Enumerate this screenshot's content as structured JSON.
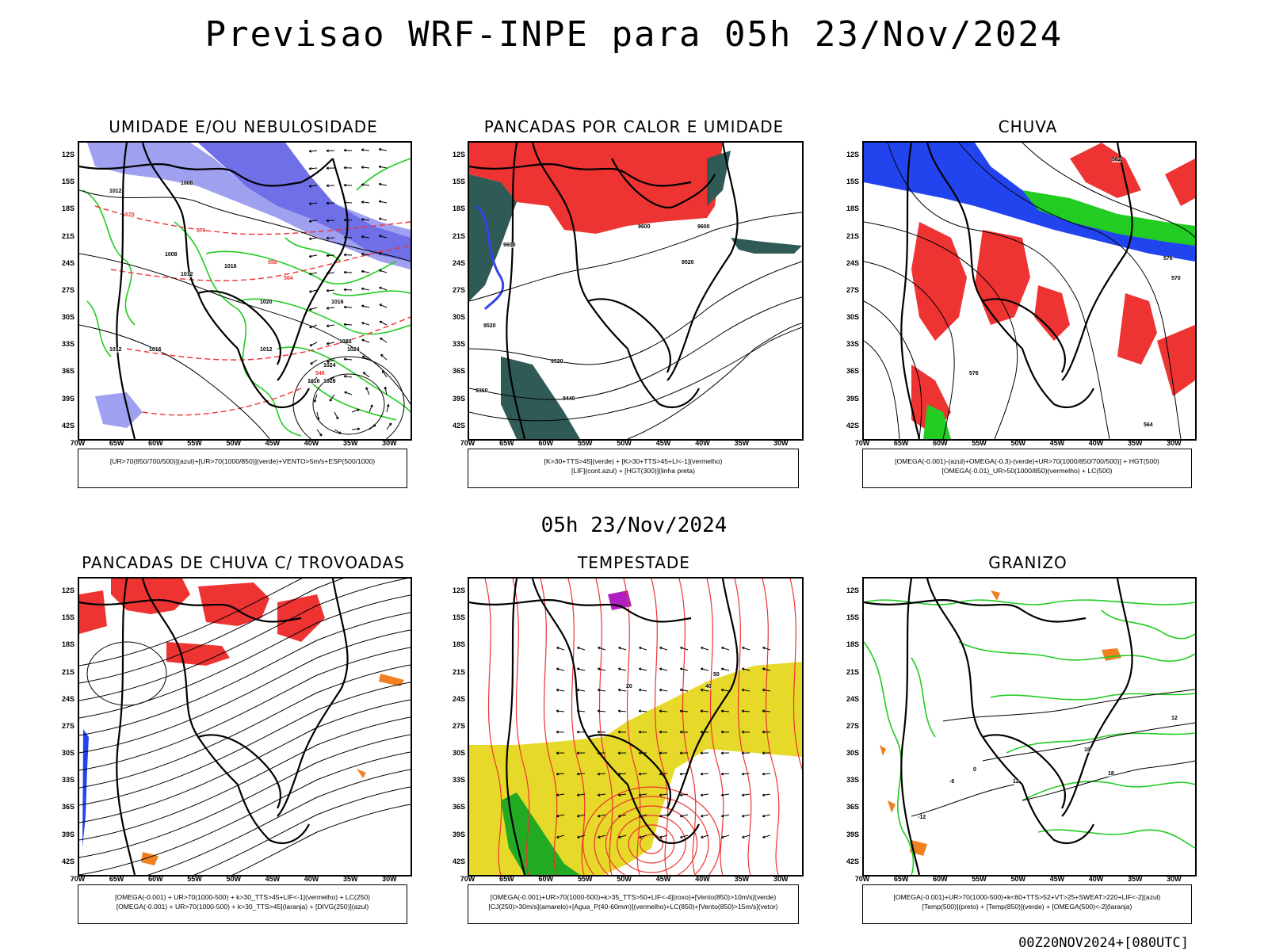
{
  "title": "Previsao WRF-INPE  para 05h 23/Nov/2024",
  "mid_date": "05h 23/Nov/2024",
  "footer_code": "00Z20NOV2024+[080UTC]",
  "y_ticks": [
    "12S",
    "15S",
    "18S",
    "21S",
    "24S",
    "27S",
    "30S",
    "33S",
    "36S",
    "39S",
    "42S"
  ],
  "x_ticks": [
    "70W",
    "65W",
    "60W",
    "55W",
    "50W",
    "45W",
    "40W",
    "35W",
    "30W"
  ],
  "colors": {
    "humidity_blue": "#6f6fe8",
    "light_blue": "#9fa0f0",
    "green": "#22cc22",
    "red": "#ee3333",
    "orange": "#f08020",
    "yellow": "#e6d92a",
    "dark_teal": "#2f5a55",
    "purple": "#b020c0"
  },
  "panels": [
    {
      "title": "UMIDADE E/OU NEBULOSIDADE",
      "legend": [
        "[UR>70(850/700/500)](azul)+[UR>70(1000/850)](verde)+VENTO>5m/s+ESP(500/1000)"
      ]
    },
    {
      "title": "PANCADAS POR CALOR E UMIDADE",
      "legend": [
        "[K>30+TTS>45](verde) + [K>30+TTS>45+LI<-1](vermelho)",
        "[LIF](cont.azul) + [HGT(300)](linha preta)"
      ]
    },
    {
      "title": "CHUVA",
      "legend": [
        "[OMEGA(-0.001)-(azul)+OMEGA(-0.3)-(verde)+UR>70(1000/850/700/500)] + HGT(500)",
        "[OMEGA(-0.01)_UR>50(1000/850)(vermelho) + LC(500)"
      ]
    },
    {
      "title": "PANCADAS DE CHUVA C/ TROVOADAS",
      "legend": [
        "[OMEGA(-0.001) + UR>70(1000-500) + k>30_TTS>45+LIF<-1](vermelho) + LC(250)",
        "[OMEGA(-0.001) + UR>70(1000-500) + k>30_TTS>45](laranja) + [DIVG(250)](azul)"
      ]
    },
    {
      "title": "TEMPESTADE",
      "legend": [
        "[OMEGA(-0.001)+UR>70(1000-500)+k>35_TTS>50+LIF<-4](roxo)+[Vento(850)>10m/s](verde)",
        "[CJ(250)>30m/s](amarelo)+[Agua_P(40-60mm)](vermelho)+LC(850)+[Vento(850)>15m/s](vetor)"
      ]
    },
    {
      "title": "GRANIZO",
      "legend": [
        "[OMEGA(-0.001)+UR>70(1000-500)+k<60+TTS>52+VT>25+SWEAT>220+LIF<-2](azul)",
        "[Temp(500)](preto) + [Temp(850)](verde) + [OMEGA(500)<-2](laranja)"
      ]
    }
  ],
  "map_labels": {
    "p1": [
      "1012",
      "1008",
      "1008",
      "1012",
      "1016",
      "1012",
      "1016",
      "1020",
      "1024",
      "1028",
      "1016",
      "1012",
      "1016",
      "1020",
      "1024",
      "570",
      "576",
      "564",
      "558",
      "546"
    ],
    "p2": [
      "9600",
      "9520",
      "9520",
      "9440",
      "9600",
      "9360",
      "9600",
      "9520"
    ],
    "p3": [
      "582",
      "576",
      "570",
      "564",
      "576"
    ],
    "p5": [
      "20",
      "40",
      "50"
    ],
    "p6": [
      "12",
      "18",
      "-12",
      "-6",
      "0",
      "18",
      "12"
    ]
  }
}
